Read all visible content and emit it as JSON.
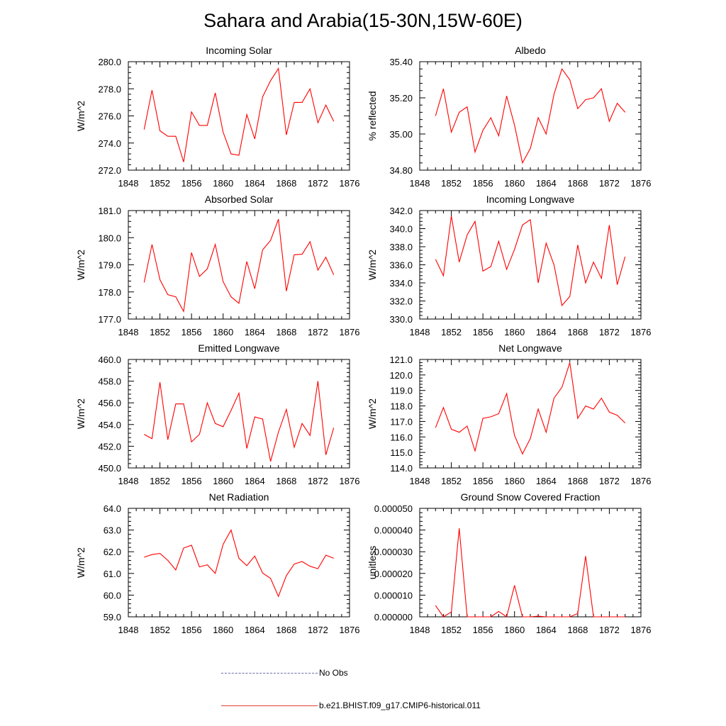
{
  "title": "Sahara and Arabia(15-30N,15W-60E)",
  "colors": {
    "model": "#ff0000",
    "obs": "#6a6aa8",
    "axis": "#000000"
  },
  "legend": {
    "obs_label": "No Obs",
    "model_label": "b.e21.BHIST.f09_g17.CMIP6-historical.011"
  },
  "chart_data": [
    {
      "type": "line",
      "title": "Incoming Solar",
      "ylabel": "W/m^2",
      "xlim": [
        1848,
        1876
      ],
      "ylim": [
        272,
        280
      ],
      "xticks": [
        1848,
        1852,
        1856,
        1860,
        1864,
        1868,
        1872,
        1876
      ],
      "xtick_labels": [
        "1848",
        "1852",
        "1856",
        "1860",
        "1864",
        "1868",
        "1872",
        "1876"
      ],
      "yticks": [
        272,
        274,
        276,
        278,
        280
      ],
      "ytick_labels": [
        "272.0",
        "274.0",
        "276.0",
        "278.0",
        "280.0"
      ],
      "x": [
        1850,
        1851,
        1852,
        1853,
        1854,
        1855,
        1856,
        1857,
        1858,
        1859,
        1860,
        1861,
        1862,
        1863,
        1864,
        1865,
        1866,
        1867,
        1868,
        1869,
        1870,
        1871,
        1872,
        1873,
        1874
      ],
      "series": [
        {
          "values": [
            275.0,
            277.9,
            274.9,
            274.5,
            274.5,
            272.6,
            276.3,
            275.3,
            275.3,
            277.7,
            274.8,
            273.2,
            273.1,
            276.1,
            274.3,
            277.4,
            278.6,
            279.5,
            274.6,
            277.0,
            277.0,
            278.0,
            275.5,
            276.8,
            275.6
          ]
        }
      ]
    },
    {
      "type": "line",
      "title": "Albedo",
      "ylabel": "% reflected",
      "xlim": [
        1848,
        1876
      ],
      "ylim": [
        34.8,
        35.4
      ],
      "xticks": [
        1848,
        1852,
        1856,
        1860,
        1864,
        1868,
        1872,
        1876
      ],
      "xtick_labels": [
        "1848",
        "1852",
        "1856",
        "1860",
        "1864",
        "1868",
        "1872",
        "1876"
      ],
      "yticks": [
        34.8,
        35.0,
        35.2,
        35.4
      ],
      "ytick_labels": [
        "34.80",
        "35.00",
        "35.20",
        "35.40"
      ],
      "x": [
        1850,
        1851,
        1852,
        1853,
        1854,
        1855,
        1856,
        1857,
        1858,
        1859,
        1860,
        1861,
        1862,
        1863,
        1864,
        1865,
        1866,
        1867,
        1868,
        1869,
        1870,
        1871,
        1872,
        1873,
        1874
      ],
      "series": [
        {
          "values": [
            35.1,
            35.25,
            35.01,
            35.12,
            35.15,
            34.9,
            35.02,
            35.09,
            34.99,
            35.21,
            35.05,
            34.84,
            34.92,
            35.09,
            35.0,
            35.22,
            35.36,
            35.3,
            35.14,
            35.19,
            35.2,
            35.25,
            35.07,
            35.17,
            35.12
          ]
        }
      ]
    },
    {
      "type": "line",
      "title": "Absorbed Solar",
      "ylabel": "W/m^2",
      "xlim": [
        1848,
        1876
      ],
      "ylim": [
        177,
        181
      ],
      "xticks": [
        1848,
        1852,
        1856,
        1860,
        1864,
        1868,
        1872,
        1876
      ],
      "xtick_labels": [
        "1848",
        "1852",
        "1856",
        "1860",
        "1864",
        "1868",
        "1872",
        "1876"
      ],
      "yticks": [
        177,
        178,
        179,
        180,
        181
      ],
      "ytick_labels": [
        "177.0",
        "178.0",
        "179.0",
        "180.0",
        "181.0"
      ],
      "x": [
        1850,
        1851,
        1852,
        1853,
        1854,
        1855,
        1856,
        1857,
        1858,
        1859,
        1860,
        1861,
        1862,
        1863,
        1864,
        1865,
        1866,
        1867,
        1868,
        1869,
        1870,
        1871,
        1872,
        1873,
        1874
      ],
      "series": [
        {
          "values": [
            178.35,
            179.75,
            178.45,
            177.9,
            177.82,
            177.28,
            179.45,
            178.57,
            178.85,
            179.75,
            178.38,
            177.82,
            177.58,
            179.12,
            178.12,
            179.55,
            179.9,
            180.68,
            178.03,
            179.37,
            179.39,
            179.85,
            178.8,
            179.28,
            178.63
          ]
        }
      ]
    },
    {
      "type": "line",
      "title": "Incoming Longwave",
      "ylabel": "W/m^2",
      "xlim": [
        1848,
        1876
      ],
      "ylim": [
        330,
        342
      ],
      "xticks": [
        1848,
        1852,
        1856,
        1860,
        1864,
        1868,
        1872,
        1876
      ],
      "xtick_labels": [
        "1848",
        "1852",
        "1856",
        "1860",
        "1864",
        "1868",
        "1872",
        "1876"
      ],
      "yticks": [
        330,
        332,
        334,
        336,
        338,
        340,
        342
      ],
      "ytick_labels": [
        "330.0",
        "332.0",
        "334.0",
        "336.0",
        "338.0",
        "340.0",
        "342.0"
      ],
      "x": [
        1850,
        1851,
        1852,
        1853,
        1854,
        1855,
        1856,
        1857,
        1858,
        1859,
        1860,
        1861,
        1862,
        1863,
        1864,
        1865,
        1866,
        1867,
        1868,
        1869,
        1870,
        1871,
        1872,
        1873,
        1874
      ],
      "series": [
        {
          "values": [
            336.6,
            334.8,
            341.4,
            336.3,
            339.3,
            340.8,
            335.3,
            335.8,
            338.6,
            335.5,
            337.7,
            340.4,
            341.0,
            334.0,
            338.4,
            336.0,
            331.5,
            332.5,
            338.2,
            334.0,
            336.3,
            334.5,
            340.4,
            333.8,
            336.9
          ]
        }
      ]
    },
    {
      "type": "line",
      "title": "Emitted Longwave",
      "ylabel": "W/m^2",
      "xlim": [
        1848,
        1876
      ],
      "ylim": [
        450,
        460
      ],
      "xticks": [
        1848,
        1852,
        1856,
        1860,
        1864,
        1868,
        1872,
        1876
      ],
      "xtick_labels": [
        "1848",
        "1852",
        "1856",
        "1860",
        "1864",
        "1868",
        "1872",
        "1876"
      ],
      "yticks": [
        450,
        452,
        454,
        456,
        458,
        460
      ],
      "ytick_labels": [
        "450.0",
        "452.0",
        "454.0",
        "456.0",
        "458.0",
        "460.0"
      ],
      "x": [
        1850,
        1851,
        1852,
        1853,
        1854,
        1855,
        1856,
        1857,
        1858,
        1859,
        1860,
        1861,
        1862,
        1863,
        1864,
        1865,
        1866,
        1867,
        1868,
        1869,
        1870,
        1871,
        1872,
        1873,
        1874
      ],
      "series": [
        {
          "values": [
            453.1,
            452.7,
            457.9,
            452.6,
            455.9,
            455.9,
            452.4,
            453.1,
            456.0,
            454.1,
            453.8,
            455.3,
            456.9,
            451.8,
            454.7,
            454.5,
            450.6,
            453.3,
            455.4,
            451.9,
            454.1,
            453.0,
            458.0,
            451.2,
            453.7
          ]
        }
      ]
    },
    {
      "type": "line",
      "title": "Net Longwave",
      "ylabel": "W/m^2",
      "xlim": [
        1848,
        1876
      ],
      "ylim": [
        114,
        121
      ],
      "xticks": [
        1848,
        1852,
        1856,
        1860,
        1864,
        1868,
        1872,
        1876
      ],
      "xtick_labels": [
        "1848",
        "1852",
        "1856",
        "1860",
        "1864",
        "1868",
        "1872",
        "1876"
      ],
      "yticks": [
        114,
        115,
        116,
        117,
        118,
        119,
        120,
        121
      ],
      "ytick_labels": [
        "114.0",
        "115.0",
        "116.0",
        "117.0",
        "118.0",
        "119.0",
        "120.0",
        "121.0"
      ],
      "x": [
        1850,
        1851,
        1852,
        1853,
        1854,
        1855,
        1856,
        1857,
        1858,
        1859,
        1860,
        1861,
        1862,
        1863,
        1864,
        1865,
        1866,
        1867,
        1868,
        1869,
        1870,
        1871,
        1872,
        1873,
        1874
      ],
      "series": [
        {
          "values": [
            116.6,
            117.9,
            116.5,
            116.3,
            116.7,
            115.1,
            117.2,
            117.3,
            117.5,
            118.8,
            116.1,
            114.9,
            115.9,
            117.8,
            116.3,
            118.5,
            119.2,
            120.8,
            117.2,
            118.0,
            117.8,
            118.5,
            117.6,
            117.4,
            116.9
          ]
        }
      ]
    },
    {
      "type": "line",
      "title": "Net Radiation",
      "ylabel": "W/m^2",
      "xlim": [
        1848,
        1876
      ],
      "ylim": [
        59,
        64
      ],
      "xticks": [
        1848,
        1852,
        1856,
        1860,
        1864,
        1868,
        1872,
        1876
      ],
      "xtick_labels": [
        "1848",
        "1852",
        "1856",
        "1860",
        "1864",
        "1868",
        "1872",
        "1876"
      ],
      "yticks": [
        59,
        60,
        61,
        62,
        63,
        64
      ],
      "ytick_labels": [
        "59.0",
        "60.0",
        "61.0",
        "62.0",
        "63.0",
        "64.0"
      ],
      "x": [
        1850,
        1851,
        1852,
        1853,
        1854,
        1855,
        1856,
        1857,
        1858,
        1859,
        1860,
        1861,
        1862,
        1863,
        1864,
        1865,
        1866,
        1867,
        1868,
        1869,
        1870,
        1871,
        1872,
        1873,
        1874
      ],
      "series": [
        {
          "values": [
            61.75,
            61.87,
            61.92,
            61.6,
            61.16,
            62.17,
            62.3,
            61.3,
            61.4,
            61.0,
            62.34,
            63.0,
            61.7,
            61.36,
            61.8,
            61.02,
            60.77,
            59.94,
            60.9,
            61.43,
            61.55,
            61.33,
            61.22,
            61.84,
            61.7
          ]
        }
      ]
    },
    {
      "type": "line",
      "title": "Ground Snow Covered Fraction",
      "ylabel": "unitless",
      "xlim": [
        1848,
        1876
      ],
      "ylim": [
        0,
        5e-05
      ],
      "xticks": [
        1848,
        1852,
        1856,
        1860,
        1864,
        1868,
        1872,
        1876
      ],
      "xtick_labels": [
        "1848",
        "1852",
        "1856",
        "1860",
        "1864",
        "1868",
        "1872",
        "1876"
      ],
      "yticks": [
        0,
        1e-05,
        2e-05,
        3e-05,
        4e-05,
        5e-05
      ],
      "ytick_labels": [
        "0.000000",
        "0.000010",
        "0.000020",
        "0.000030",
        "0.000040",
        "0.000050"
      ],
      "x": [
        1850,
        1851,
        1852,
        1853,
        1854,
        1855,
        1856,
        1857,
        1858,
        1859,
        1860,
        1861,
        1862,
        1863,
        1864,
        1865,
        1866,
        1867,
        1868,
        1869,
        1870,
        1871,
        1872,
        1873,
        1874
      ],
      "series": [
        {
          "values": [
            5.2e-06,
            0.0,
            2.2e-06,
            4.08e-05,
            0.0,
            0.0,
            0.0,
            0.0,
            2.5e-06,
            0.0,
            1.45e-05,
            0.0,
            0.0,
            3e-07,
            0.0,
            0.0,
            0.0,
            0.0,
            1.5e-06,
            2.8e-05,
            0.0,
            0.0,
            0.0,
            0.0,
            0.0
          ]
        }
      ]
    }
  ]
}
